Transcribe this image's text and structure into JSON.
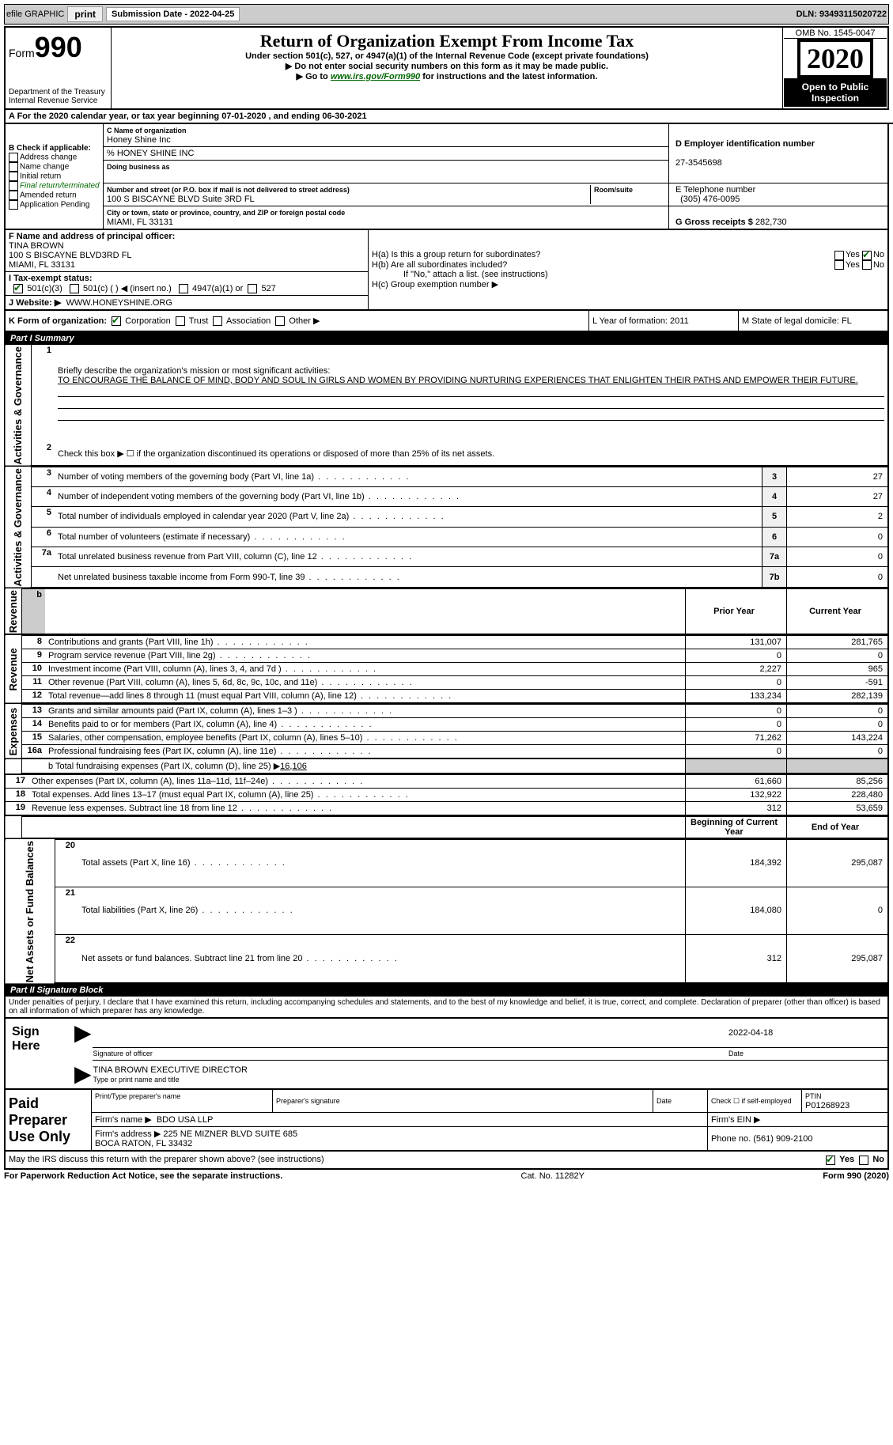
{
  "topbar": {
    "efile": "efile GRAPHIC",
    "print": "print",
    "subdate_label": "Submission Date - 2022-04-25",
    "dln": "DLN: 93493115020722"
  },
  "header": {
    "form": "Form",
    "num": "990",
    "dept": "Department of the Treasury\nInternal Revenue Service",
    "title": "Return of Organization Exempt From Income Tax",
    "subtitle": "Under section 501(c), 527, or 4947(a)(1) of the Internal Revenue Code (except private foundations)",
    "note1": "▶ Do not enter social security numbers on this form as it may be made public.",
    "note2_pre": "▶ Go to ",
    "note2_link": "www.irs.gov/Form990",
    "note2_post": " for instructions and the latest information.",
    "omb": "OMB No. 1545-0047",
    "year": "2020",
    "open": "Open to Public Inspection"
  },
  "lineA": "A For the 2020 calendar year, or tax year beginning 07-01-2020    , and ending 06-30-2021",
  "boxB": {
    "label": "B Check if applicable:",
    "opts": [
      "Address change",
      "Name change",
      "Initial return",
      "Final return/terminated",
      "Amended return",
      "Application Pending"
    ]
  },
  "boxC": {
    "label": "C Name of organization",
    "name": "Honey Shine Inc",
    "care": "% HONEY SHINE INC",
    "dba_label": "Doing business as",
    "addr_label": "Number and street (or P.O. box if mail is not delivered to street address)",
    "room_label": "Room/suite",
    "addr": "100 S BISCAYNE BLVD Suite 3RD FL",
    "city_label": "City or town, state or province, country, and ZIP or foreign postal code",
    "city": "MIAMI, FL  33131"
  },
  "boxD": {
    "label": "D Employer identification number",
    "val": "27-3545698"
  },
  "boxE": {
    "label": "E Telephone number",
    "val": "(305) 476-0095"
  },
  "boxG": {
    "label": "G Gross receipts $",
    "val": "282,730"
  },
  "boxF": {
    "label": "F Name and address of principal officer:",
    "name": "TINA BROWN",
    "addr": "100 S BISCAYNE BLVD3RD FL\nMIAMI, FL  33131"
  },
  "boxH": {
    "a": "H(a)  Is this a group return for subordinates?",
    "b": "H(b)  Are all subordinates included?",
    "bnote": "If \"No,\" attach a list. (see instructions)",
    "c": "H(c)  Group exemption number ▶",
    "yes": "Yes",
    "no": "No"
  },
  "lineI": {
    "label": "I    Tax-exempt status:",
    "o1": "501(c)(3)",
    "o2": "501(c) (  ) ◀ (insert no.)",
    "o3": "4947(a)(1) or",
    "o4": "527"
  },
  "lineJ": {
    "label": "J    Website: ▶",
    "val": "WWW.HONEYSHINE.ORG"
  },
  "lineK": {
    "label": "K Form of organization:",
    "o1": "Corporation",
    "o2": "Trust",
    "o3": "Association",
    "o4": "Other ▶"
  },
  "lineL": "L Year of formation: 2011",
  "lineM": "M State of legal domicile: FL",
  "part1": {
    "hdr": "Part I      Summary",
    "tab_gov": "Activities & Governance",
    "tab_rev": "Revenue",
    "tab_exp": "Expenses",
    "tab_net": "Net Assets or Fund Balances",
    "l1": "Briefly describe the organization's mission or most significant activities:",
    "mission": "TO ENCOURAGE THE BALANCE OF MIND, BODY AND SOUL IN GIRLS AND WOMEN BY PROVIDING NURTURING EXPERIENCES THAT ENLIGHTEN THEIR PATHS AND EMPOWER THEIR FUTURE.",
    "l2": "Check this box ▶ ☐   if the organization discontinued its operations or disposed of more than 25% of its net assets.",
    "rows_gov": [
      {
        "n": "3",
        "t": "Number of voting members of the governing body (Part VI, line 1a)",
        "k": "3",
        "v": "27"
      },
      {
        "n": "4",
        "t": "Number of independent voting members of the governing body (Part VI, line 1b)",
        "k": "4",
        "v": "27"
      },
      {
        "n": "5",
        "t": "Total number of individuals employed in calendar year 2020 (Part V, line 2a)",
        "k": "5",
        "v": "2"
      },
      {
        "n": "6",
        "t": "Total number of volunteers (estimate if necessary)",
        "k": "6",
        "v": "0"
      },
      {
        "n": "7a",
        "t": "Total unrelated business revenue from Part VIII, column (C), line 12",
        "k": "7a",
        "v": "0"
      },
      {
        "n": "",
        "t": "Net unrelated business taxable income from Form 990-T, line 39",
        "k": "7b",
        "v": "0"
      }
    ],
    "col_prior": "Prior Year",
    "col_curr": "Current Year",
    "rows_rev": [
      {
        "n": "8",
        "t": "Contributions and grants (Part VIII, line 1h)",
        "p": "131,007",
        "c": "281,765"
      },
      {
        "n": "9",
        "t": "Program service revenue (Part VIII, line 2g)",
        "p": "0",
        "c": "0"
      },
      {
        "n": "10",
        "t": "Investment income (Part VIII, column (A), lines 3, 4, and 7d )",
        "p": "2,227",
        "c": "965"
      },
      {
        "n": "11",
        "t": "Other revenue (Part VIII, column (A), lines 5, 6d, 8c, 9c, 10c, and 11e)",
        "p": "0",
        "c": "-591"
      },
      {
        "n": "12",
        "t": "Total revenue—add lines 8 through 11 (must equal Part VIII, column (A), line 12)",
        "p": "133,234",
        "c": "282,139"
      }
    ],
    "rows_exp": [
      {
        "n": "13",
        "t": "Grants and similar amounts paid (Part IX, column (A), lines 1–3 )",
        "p": "0",
        "c": "0"
      },
      {
        "n": "14",
        "t": "Benefits paid to or for members (Part IX, column (A), line 4)",
        "p": "0",
        "c": "0"
      },
      {
        "n": "15",
        "t": "Salaries, other compensation, employee benefits (Part IX, column (A), lines 5–10)",
        "p": "71,262",
        "c": "143,224"
      },
      {
        "n": "16a",
        "t": "Professional fundraising fees (Part IX, column (A), line 11e)",
        "p": "0",
        "c": "0"
      }
    ],
    "l16b_pre": "b  Total fundraising expenses (Part IX, column (D), line 25) ▶",
    "l16b_val": "16,106",
    "rows_exp2": [
      {
        "n": "17",
        "t": "Other expenses (Part IX, column (A), lines 11a–11d, 11f–24e)",
        "p": "61,660",
        "c": "85,256"
      },
      {
        "n": "18",
        "t": "Total expenses. Add lines 13–17 (must equal Part IX, column (A), line 25)",
        "p": "132,922",
        "c": "228,480"
      },
      {
        "n": "19",
        "t": "Revenue less expenses. Subtract line 18 from line 12",
        "p": "312",
        "c": "53,659"
      }
    ],
    "col_beg": "Beginning of Current Year",
    "col_end": "End of Year",
    "rows_net": [
      {
        "n": "20",
        "t": "Total assets (Part X, line 16)",
        "p": "184,392",
        "c": "295,087"
      },
      {
        "n": "21",
        "t": "Total liabilities (Part X, line 26)",
        "p": "184,080",
        "c": "0"
      },
      {
        "n": "22",
        "t": "Net assets or fund balances. Subtract line 21 from line 20",
        "p": "312",
        "c": "295,087"
      }
    ]
  },
  "part2": {
    "hdr": "Part II      Signature Block",
    "penalty": "Under penalties of perjury, I declare that I have examined this return, including accompanying schedules and statements, and to the best of my knowledge and belief, it is true, correct, and complete. Declaration of preparer (other than officer) is based on all information of which preparer has any knowledge.",
    "sign": "Sign Here",
    "sig_officer": "Signature of officer",
    "date": "Date",
    "date_val": "2022-04-18",
    "name": "TINA BROWN  EXECUTIVE DIRECTOR",
    "name_label": "Type or print name and title",
    "paid": "Paid Preparer Use Only",
    "prep_name_label": "Print/Type preparer's name",
    "prep_sig_label": "Preparer's signature",
    "prep_date_label": "Date",
    "prep_check": "Check ☐ if self-employed",
    "ptin_label": "PTIN",
    "ptin": "P01268923",
    "firm_name_label": "Firm's name   ▶",
    "firm_name": "BDO USA LLP",
    "firm_ein_label": "Firm's EIN ▶",
    "firm_addr_label": "Firm's address ▶",
    "firm_addr": "225 NE MIZNER BLVD SUITE 685\nBOCA RATON, FL  33432",
    "firm_phone_label": "Phone no.",
    "firm_phone": "(561) 909-2100",
    "may_irs": "May the IRS discuss this return with the preparer shown above? (see instructions)",
    "yes": "Yes",
    "no": "No"
  },
  "footer": {
    "left": "For Paperwork Reduction Act Notice, see the separate instructions.",
    "mid": "Cat. No. 11282Y",
    "right": "Form 990 (2020)"
  }
}
